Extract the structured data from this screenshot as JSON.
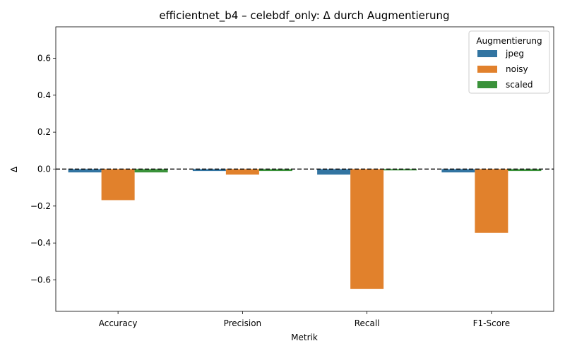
{
  "chart_data": {
    "type": "bar",
    "title": "efficientnet_b4 – celebdf_only: Δ durch Augmentierung",
    "xlabel": "Metrik",
    "ylabel": "Δ",
    "categories": [
      "Accuracy",
      "Precision",
      "Recall",
      "F1-Score"
    ],
    "series": [
      {
        "name": "jpeg",
        "color": "#3274a1",
        "values": [
          -0.018,
          -0.01,
          -0.03,
          -0.018
        ]
      },
      {
        "name": "noisy",
        "color": "#e1812c",
        "values": [
          -0.168,
          -0.03,
          -0.648,
          -0.345
        ]
      },
      {
        "name": "scaled",
        "color": "#3a923a",
        "values": [
          -0.018,
          -0.01,
          -0.007,
          -0.01
        ]
      }
    ],
    "ylim": [
      -0.77,
      0.77
    ],
    "yticks": [
      -0.6,
      -0.4,
      -0.2,
      0.0,
      0.2,
      0.4,
      0.6
    ],
    "ytick_labels": [
      "−0.6",
      "−0.4",
      "−0.2",
      "0.0",
      "0.2",
      "0.4",
      "0.6"
    ],
    "reference_line": {
      "y": 0,
      "style": "dashed"
    },
    "legend": {
      "title": "Augmentierung",
      "placement": "top-right"
    },
    "grid": false
  }
}
